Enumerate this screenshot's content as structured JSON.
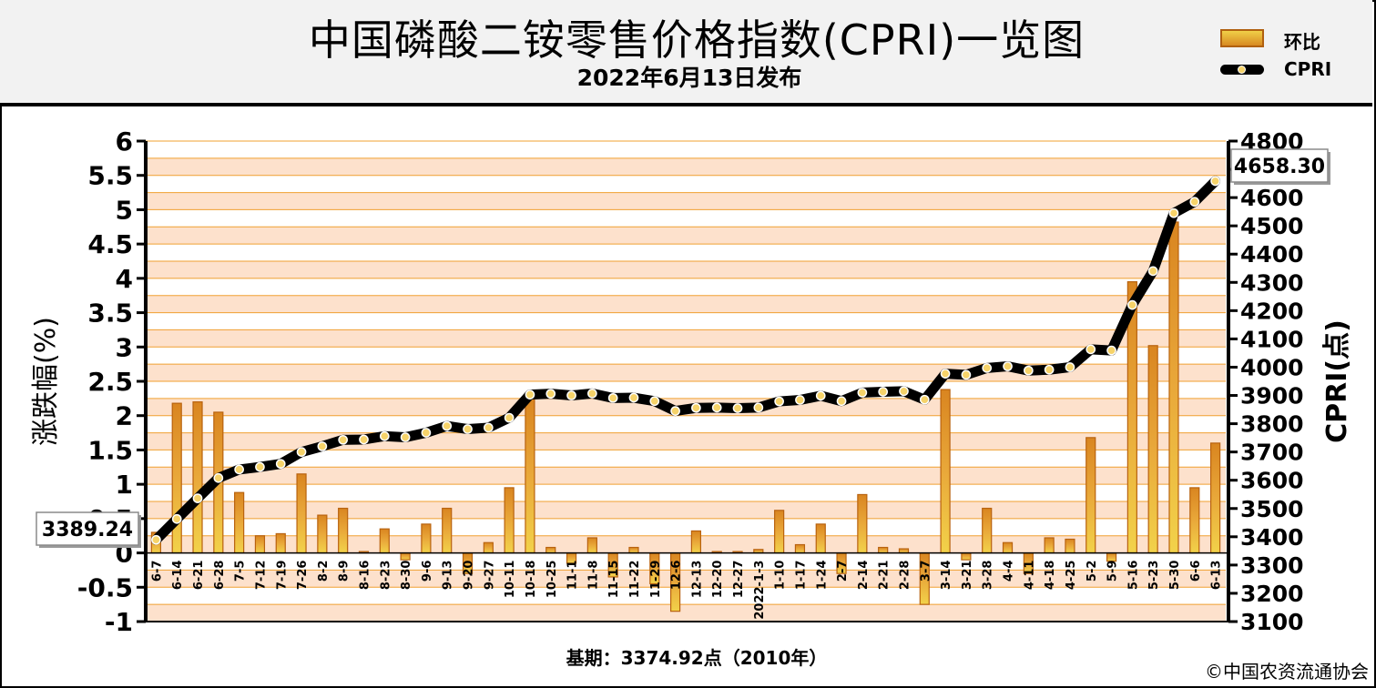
{
  "header": {
    "title": "中国磷酸二铵零售价格指数(CPRI)一览图",
    "subtitle": "2022年6月13日发布"
  },
  "legend": {
    "bar_label": "环比",
    "line_label": "CPRI"
  },
  "footer": {
    "base_note": "基期：3374.92点（2010年）",
    "copyright": "©中国农资流通协会"
  },
  "colors": {
    "band_light": "#fde1cc",
    "band_white": "#ffffff",
    "grid_line": "#f0a030",
    "bar_top": "#f2d24a",
    "bar_bottom": "#d98520",
    "bar_edge": "#b8620f",
    "line": "#000000",
    "dot": "#f6d36a"
  },
  "chart_data": {
    "type": "bar+line",
    "y_left_label": "涨跌幅(%)",
    "y_right_label": "CPRI(点)",
    "y_left_range": [
      -1,
      6
    ],
    "y_left_ticks": [
      "6",
      "5.5",
      "5",
      "4.5",
      "4",
      "3.5",
      "3",
      "2.5",
      "2",
      "1.5",
      "1",
      "0.5",
      "0",
      "-0.5",
      "-1"
    ],
    "y_right_range": [
      3100,
      4800
    ],
    "y_right_ticks": [
      "4800",
      "4700",
      "4600",
      "4500",
      "4400",
      "4300",
      "4200",
      "4100",
      "4000",
      "3900",
      "3800",
      "3700",
      "3600",
      "3500",
      "3400",
      "3300",
      "3200",
      "3100"
    ],
    "categories": [
      "6-7",
      "6-14",
      "6-21",
      "6-28",
      "7-5",
      "7-12",
      "7-19",
      "7-26",
      "8-2",
      "8-9",
      "8-16",
      "8-23",
      "8-30",
      "9-6",
      "9-13",
      "9-20",
      "9-27",
      "10-11",
      "10-18",
      "10-25",
      "11-1",
      "11-8",
      "11-15",
      "11-22",
      "11-29",
      "12-6",
      "12-13",
      "12-20",
      "12-27",
      "2022-1-3",
      "1-10",
      "1-17",
      "1-24",
      "2-7",
      "2-14",
      "2-21",
      "2-28",
      "3-7",
      "3-14",
      "3-21",
      "3-28",
      "4-4",
      "4-11",
      "4-18",
      "4-25",
      "5-2",
      "5-9",
      "5-16",
      "5-23",
      "5-30",
      "6-6",
      "6-13"
    ],
    "series": [
      {
        "name": "环比",
        "type": "bar",
        "axis": "left",
        "values": [
          0.3,
          2.18,
          2.2,
          2.05,
          0.88,
          0.25,
          0.28,
          1.15,
          0.55,
          0.65,
          0.02,
          0.35,
          -0.1,
          0.42,
          0.65,
          -0.3,
          0.15,
          0.95,
          2.25,
          0.08,
          -0.15,
          0.22,
          -0.35,
          0.08,
          -0.45,
          -0.85,
          0.32,
          0.02,
          0.02,
          0.05,
          0.62,
          0.12,
          0.42,
          -0.3,
          0.85,
          0.08,
          0.06,
          -0.75,
          2.38,
          -0.1,
          0.65,
          0.15,
          -0.3,
          0.22,
          0.2,
          1.68,
          -0.12,
          3.95,
          3.02,
          4.82,
          0.95,
          1.6
        ]
      },
      {
        "name": "CPRI",
        "type": "line",
        "axis": "right",
        "values": [
          3389.24,
          3463,
          3536,
          3608,
          3638,
          3647,
          3658,
          3700,
          3720,
          3743,
          3744,
          3756,
          3752,
          3768,
          3792,
          3781,
          3786,
          3821,
          3903,
          3906,
          3900,
          3907,
          3891,
          3892,
          3880,
          3845,
          3856,
          3857,
          3855,
          3857,
          3879,
          3884,
          3899,
          3880,
          3910,
          3913,
          3915,
          3885,
          3977,
          3973,
          3997,
          4003,
          3988,
          3991,
          4000,
          4063,
          4059,
          4220,
          4340,
          4545,
          4585,
          4658.3
        ]
      }
    ],
    "callouts": {
      "first_value": "3389.24",
      "last_value": "4658.30"
    }
  }
}
